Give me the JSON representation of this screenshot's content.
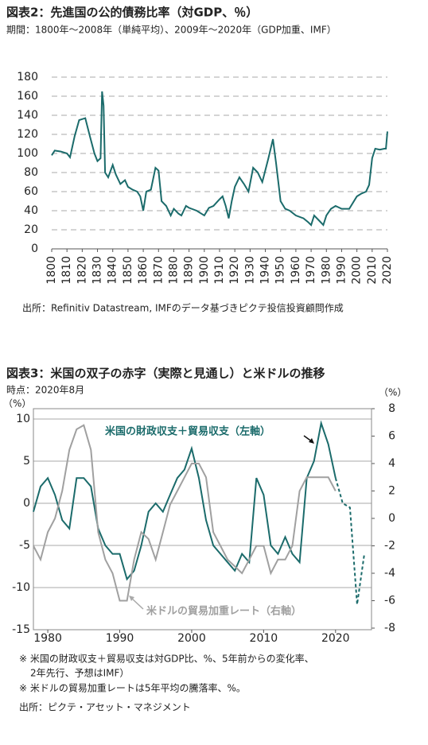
{
  "chart_data": [
    {
      "type": "line",
      "title": "図表2：先進国の公的債務比率（対GDP、％）",
      "subtitle": "期間：1800年～2008年（単純平均）、2009年～2020年（GDP加重、IMF）",
      "source": "出所：Refinitiv Datastream, IMFのデータ基づきピクテ投信投資顧問作成",
      "x": [
        1800,
        1802,
        1806,
        1810,
        1812,
        1815,
        1818,
        1822,
        1825,
        1828,
        1830,
        1832,
        1833,
        1834,
        1835,
        1837,
        1840,
        1842,
        1845,
        1848,
        1850,
        1853,
        1856,
        1858,
        1860,
        1862,
        1865,
        1868,
        1870,
        1872,
        1875,
        1878,
        1880,
        1883,
        1885,
        1888,
        1890,
        1895,
        1900,
        1903,
        1906,
        1910,
        1912,
        1914,
        1916,
        1918,
        1920,
        1923,
        1926,
        1929,
        1932,
        1935,
        1938,
        1942,
        1945,
        1947,
        1950,
        1953,
        1956,
        1960,
        1965,
        1968,
        1970,
        1972,
        1975,
        1978,
        1980,
        1983,
        1986,
        1990,
        1995,
        2000,
        2003,
        2006,
        2008,
        2010,
        2012,
        2015,
        2018,
        2019,
        2020
      ],
      "series": [
        {
          "color": "#1b6b6b",
          "values": [
            98,
            103,
            102,
            100,
            96,
            118,
            135,
            137,
            118,
            100,
            92,
            95,
            165,
            150,
            80,
            75,
            88,
            78,
            68,
            72,
            65,
            62,
            60,
            55,
            40,
            60,
            62,
            85,
            82,
            50,
            45,
            35,
            42,
            37,
            35,
            45,
            43,
            40,
            35,
            43,
            45,
            52,
            55,
            45,
            32,
            50,
            65,
            75,
            68,
            60,
            85,
            80,
            70,
            95,
            115,
            90,
            50,
            42,
            40,
            35,
            32,
            28,
            25,
            35,
            30,
            25,
            35,
            42,
            45,
            42,
            42,
            55,
            58,
            60,
            67,
            95,
            105,
            104,
            105,
            105,
            123
          ]
        }
      ],
      "xlim": [
        1800,
        2020
      ],
      "xticks": [
        1800,
        1810,
        1820,
        1830,
        1840,
        1850,
        1860,
        1870,
        1880,
        1890,
        1900,
        1910,
        1920,
        1930,
        1940,
        1950,
        1960,
        1970,
        1980,
        1990,
        2000,
        2010,
        2020
      ],
      "ylim": [
        0,
        180
      ],
      "yticks": [
        0,
        20,
        40,
        60,
        80,
        100,
        120,
        140,
        160,
        180
      ],
      "grid": "dashed"
    },
    {
      "type": "line",
      "title": "図表3：米国の双子の赤字（実際と見通し）と米ドルの推移",
      "subtitle": "時点：2020年8月",
      "y_label": "（%）",
      "y2_label": "（%）",
      "notes": [
        "※ 米国の財政収支＋貿易収支は対GDP比、%、5年前からの変化率、",
        "2年先行、予想はIMF）",
        "※ 米ドルの貿易加重レートは5年平均の騰落率、%。"
      ],
      "source": "出所：ピクテ・アセット・マネジメント",
      "x": [
        1978,
        1979,
        1980,
        1981,
        1982,
        1983,
        1984,
        1985,
        1986,
        1987,
        1988,
        1989,
        1990,
        1991,
        1992,
        1993,
        1994,
        1995,
        1996,
        1997,
        1998,
        1999,
        2000,
        2001,
        2002,
        2003,
        2004,
        2005,
        2006,
        2007,
        2008,
        2009,
        2010,
        2011,
        2012,
        2013,
        2014,
        2015,
        2016,
        2017,
        2018,
        2019,
        2020,
        2021,
        2022,
        2023,
        2024
      ],
      "series": [
        {
          "name": "米国の財政収支＋貿易収支（左軸）",
          "color": "#1b6b6b",
          "dashed_from": 2020,
          "values": [
            -1,
            2,
            3,
            1,
            -2,
            -3,
            3,
            3,
            2,
            -3,
            -5,
            -6,
            -6,
            -9,
            -8,
            -5,
            -1,
            0,
            -1,
            1,
            3,
            4,
            6.5,
            3,
            -2,
            -5,
            -6,
            -7,
            -8,
            -6,
            -7,
            3,
            1,
            -5,
            -6,
            -4,
            -6,
            -7,
            3,
            5,
            9.5,
            7,
            3,
            0,
            -0.5,
            -12,
            -6
          ]
        },
        {
          "name": "米ドルの貿易加重レート（右軸）",
          "color": "#a0a0a0",
          "axis": "y2",
          "values": [
            -2,
            -3,
            -1,
            0,
            2,
            5,
            6.5,
            6.8,
            5,
            -1,
            -3,
            -4,
            -6,
            -6,
            -3,
            -1,
            -1.5,
            -3,
            -1,
            1,
            2,
            3,
            4,
            4,
            3,
            -1,
            -2,
            -3,
            -3.5,
            -4,
            -3,
            -2,
            -2,
            -4,
            -3,
            -3,
            -2,
            2,
            3,
            3,
            3,
            3,
            2,
            null,
            null,
            null,
            null
          ]
        }
      ],
      "xlim": [
        1978,
        2025
      ],
      "xticks": [
        1980,
        1990,
        2000,
        2010,
        2020
      ],
      "ylim": [
        -15,
        10
      ],
      "yticks": [
        -15,
        -10,
        -5,
        0,
        5,
        10
      ],
      "y2lim": [
        -8,
        8
      ],
      "y2ticks": [
        -8,
        -6,
        -4,
        -2,
        0,
        2,
        4,
        6,
        8
      ],
      "grid": "solid"
    }
  ]
}
